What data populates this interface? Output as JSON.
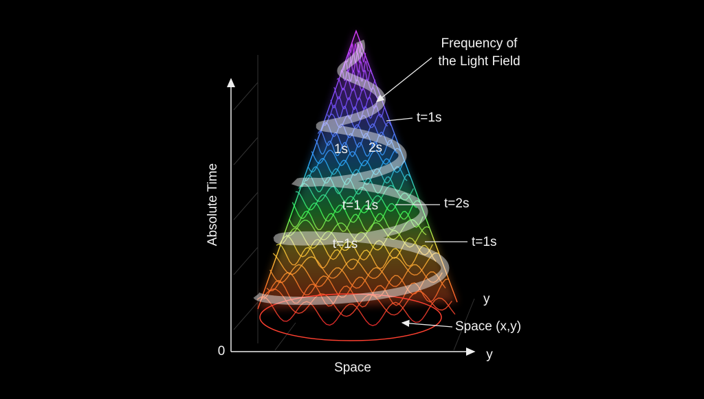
{
  "title_annotation": [
    "Frequency of",
    "the Light Field"
  ],
  "axes": {
    "vertical_label": "Absolute Time",
    "horizontal_label": "Space",
    "origin": "0",
    "horizontal_end": "y",
    "depth_end": "y"
  },
  "annotations": {
    "top_right": "t=1s",
    "inner_left": "1s",
    "inner_right": "2s",
    "middle_inner": "t=1 1s",
    "middle_right": "t=2s",
    "lower_right": "t=1s",
    "lower_inner": "t=1s",
    "base": "Space (x,y)"
  }
}
